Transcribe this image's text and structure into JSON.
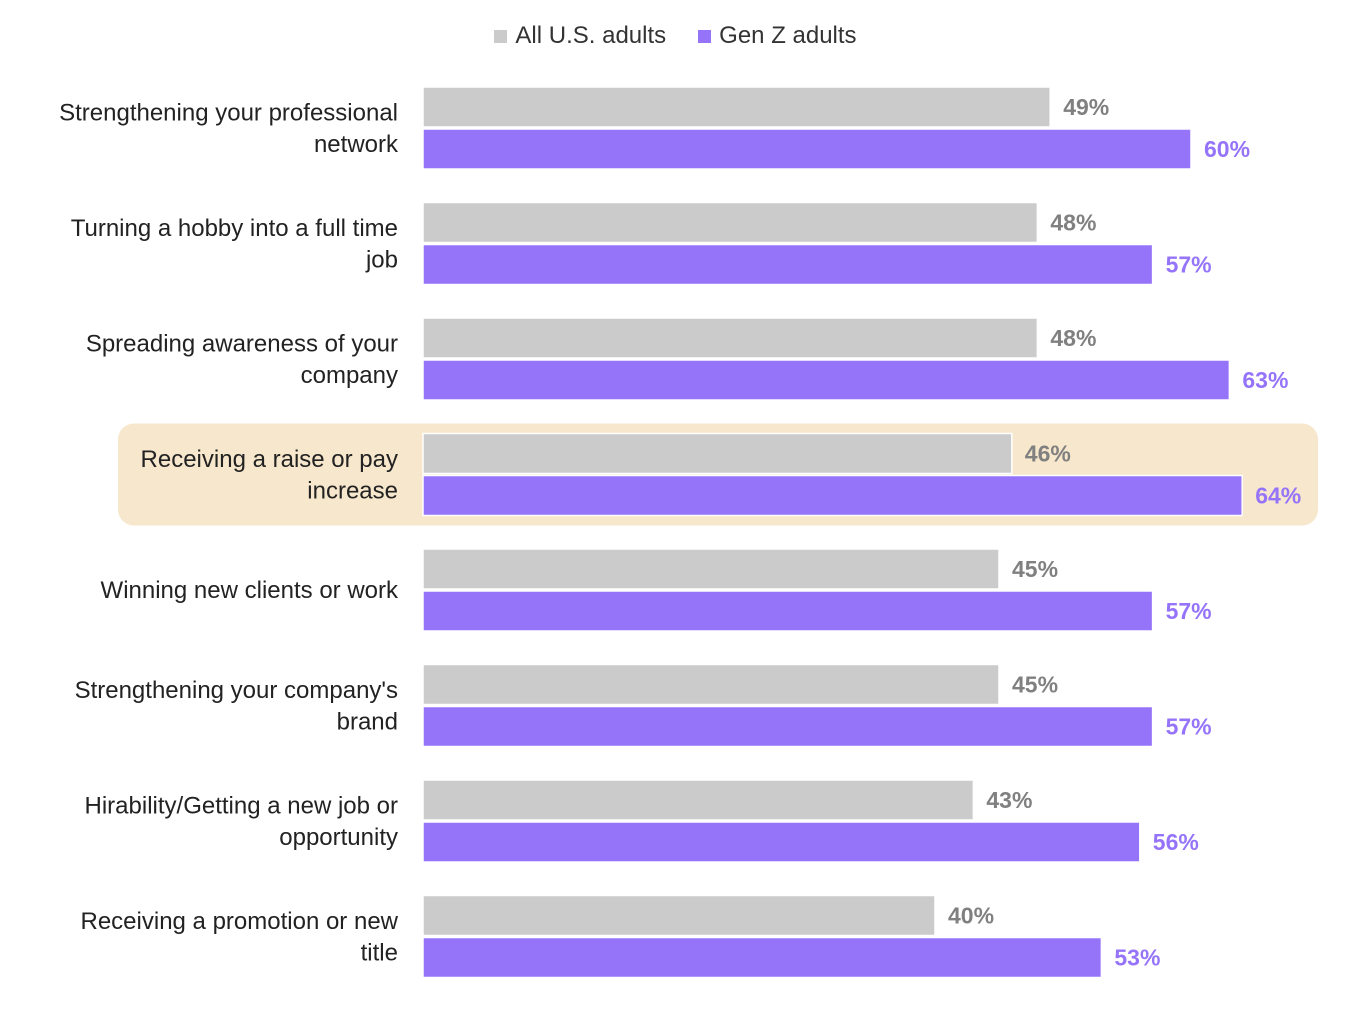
{
  "chart_data": {
    "type": "bar",
    "orientation": "horizontal",
    "categories": [
      [
        "Strengthening your professional",
        "network"
      ],
      [
        "Turning a hobby into a full time",
        "job"
      ],
      [
        "Spreading awareness of your",
        "company"
      ],
      [
        "Receiving a raise or pay",
        "increase"
      ],
      [
        "Winning new clients or work"
      ],
      [
        "Strengthening your company's",
        "brand"
      ],
      [
        "Hirability/Getting a new job or",
        "opportunity"
      ],
      [
        "Receiving a promotion or new",
        "title"
      ]
    ],
    "series": [
      {
        "name": "All U.S. adults",
        "color": "#cbcbcb",
        "label_color": "#808080",
        "values": [
          49,
          48,
          48,
          46,
          45,
          45,
          43,
          40
        ],
        "value_labels": [
          "49%",
          "48%",
          "48%",
          "46%",
          "45%",
          "45%",
          "43%",
          "40%"
        ]
      },
      {
        "name": "Gen Z adults",
        "color": "#9574fa",
        "label_color": "#9574fa",
        "values": [
          60,
          57,
          63,
          64,
          57,
          57,
          56,
          53
        ],
        "value_labels": [
          "60%",
          "57%",
          "63%",
          "64%",
          "57%",
          "57%",
          "56%",
          "53%"
        ]
      }
    ],
    "highlighted_category_index": 3,
    "highlight_color": "#f7e7cc",
    "legend_position": "top-center",
    "grid": false,
    "xlim": [
      0,
      100
    ]
  }
}
